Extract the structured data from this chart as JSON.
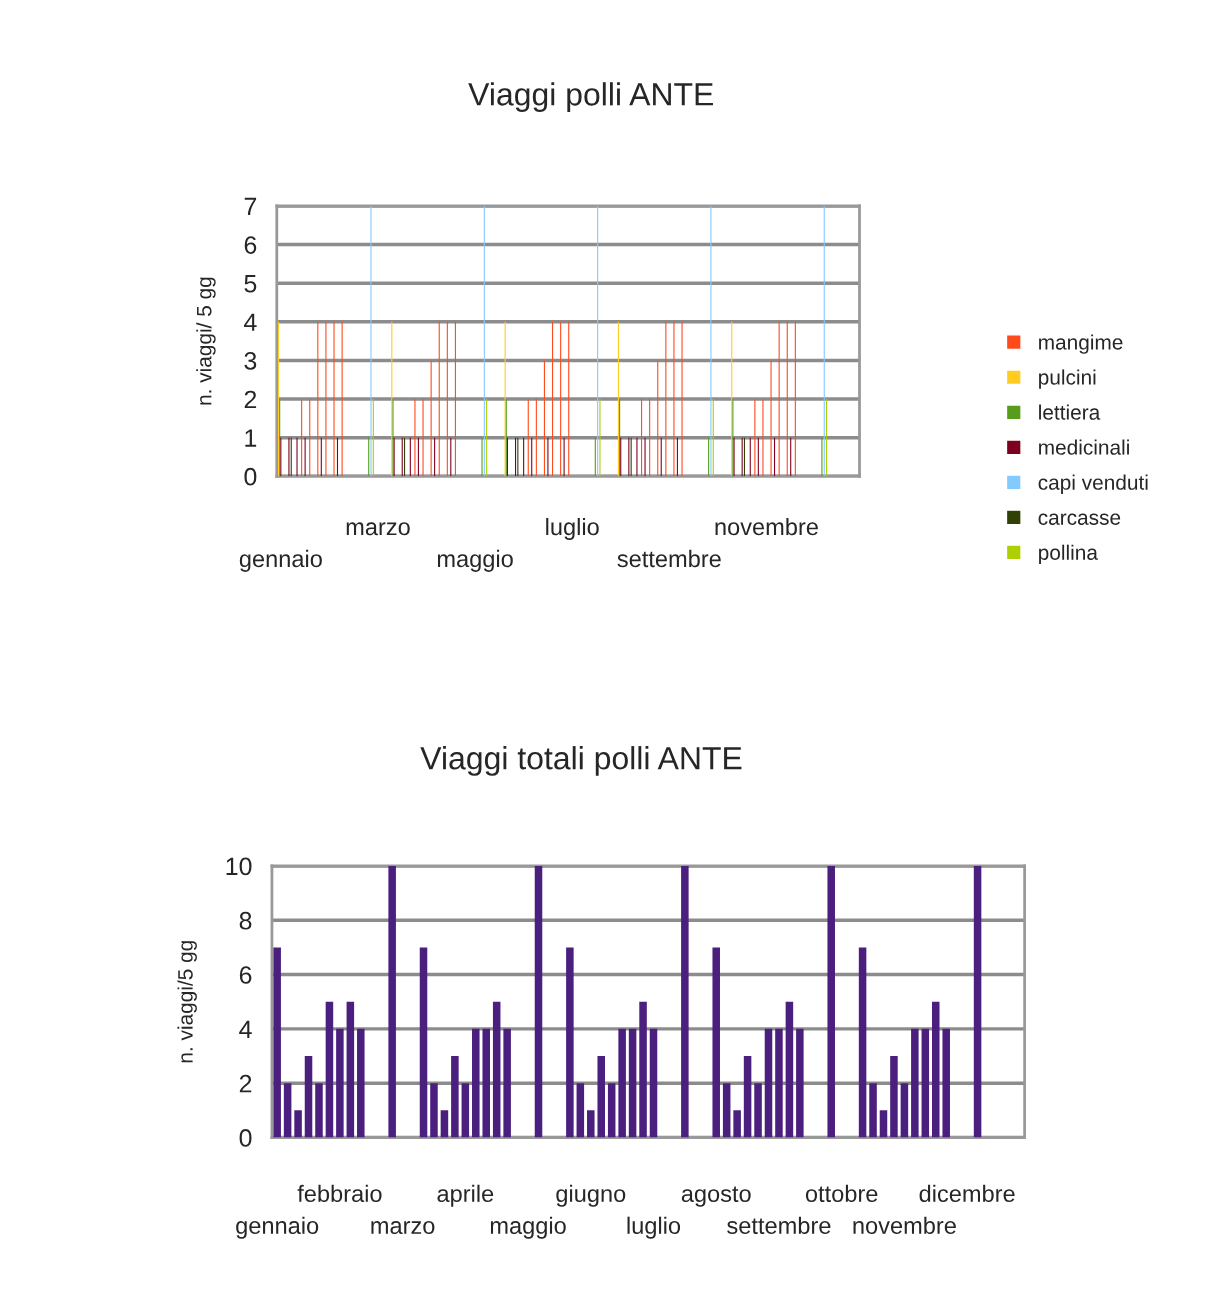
{
  "chart_data": [
    {
      "type": "bar",
      "title": "Viaggi polli ANTE",
      "ylabel": "n. viaggi/ 5 gg",
      "ylim": [
        0,
        7
      ],
      "yticks": [
        0,
        1,
        2,
        3,
        4,
        5,
        6,
        7
      ],
      "grid": "y",
      "legend": "right",
      "categories": [
        "gennaio",
        null,
        null,
        null,
        null,
        null,
        null,
        null,
        null,
        null,
        null,
        null,
        "marzo",
        null,
        null,
        null,
        null,
        null,
        null,
        null,
        null,
        null,
        null,
        null,
        "maggio",
        null,
        null,
        null,
        null,
        null,
        null,
        null,
        null,
        null,
        null,
        null,
        "luglio",
        null,
        null,
        null,
        null,
        null,
        null,
        null,
        null,
        null,
        null,
        null,
        "settembre",
        null,
        null,
        null,
        null,
        null,
        null,
        null,
        null,
        null,
        null,
        null,
        "novembre",
        null,
        null,
        null,
        null,
        null,
        null,
        null,
        null,
        null,
        null,
        null
      ],
      "series": [
        {
          "name": "mangime",
          "color": "#ff4a1c",
          "values": [
            null,
            null,
            null,
            2,
            2,
            4,
            4,
            4,
            4,
            null,
            null,
            null,
            null,
            null,
            null,
            null,
            null,
            2,
            2,
            3,
            4,
            4,
            4,
            null,
            null,
            null,
            null,
            null,
            null,
            null,
            null,
            2,
            2,
            3,
            4,
            4,
            4,
            null,
            null,
            null,
            null,
            null,
            null,
            null,
            null,
            2,
            2,
            3,
            4,
            4,
            4,
            null,
            null,
            null,
            null,
            null,
            null,
            null,
            null,
            2,
            2,
            3,
            4,
            4,
            4,
            null,
            null,
            null,
            null,
            null,
            null,
            null
          ]
        },
        {
          "name": "pulcini",
          "color": "#ffcc1f",
          "values": [
            4,
            null,
            null,
            null,
            null,
            null,
            null,
            null,
            null,
            null,
            null,
            null,
            null,
            null,
            4,
            null,
            null,
            null,
            null,
            null,
            null,
            null,
            null,
            null,
            null,
            null,
            null,
            null,
            4,
            null,
            null,
            null,
            null,
            null,
            null,
            null,
            null,
            null,
            null,
            null,
            null,
            null,
            4,
            null,
            null,
            null,
            null,
            null,
            null,
            null,
            null,
            null,
            null,
            null,
            null,
            null,
            4,
            null,
            null,
            null,
            null,
            null,
            null,
            null,
            null,
            null,
            null,
            null,
            null,
            null,
            null,
            null
          ]
        },
        {
          "name": "lettiera",
          "color": "#579d1c",
          "values": [
            2,
            null,
            null,
            null,
            null,
            null,
            null,
            null,
            null,
            null,
            null,
            1,
            null,
            null,
            2,
            null,
            null,
            null,
            null,
            null,
            null,
            null,
            null,
            null,
            null,
            1,
            null,
            null,
            2,
            null,
            null,
            null,
            null,
            null,
            null,
            null,
            null,
            null,
            null,
            1,
            null,
            null,
            2,
            null,
            null,
            null,
            null,
            null,
            null,
            null,
            null,
            null,
            null,
            1,
            null,
            null,
            2,
            null,
            null,
            null,
            null,
            null,
            null,
            null,
            null,
            null,
            null,
            1,
            null,
            null,
            null,
            null
          ]
        },
        {
          "name": "medicinali",
          "color": "#7e0021",
          "values": [
            1,
            1,
            1,
            1,
            null,
            1,
            null,
            1,
            null,
            null,
            null,
            null,
            null,
            null,
            1,
            1,
            1,
            1,
            null,
            1,
            null,
            1,
            null,
            null,
            null,
            null,
            null,
            null,
            1,
            1,
            1,
            1,
            null,
            1,
            null,
            1,
            null,
            null,
            null,
            null,
            null,
            null,
            1,
            1,
            1,
            1,
            null,
            1,
            null,
            1,
            null,
            null,
            null,
            null,
            null,
            null,
            1,
            1,
            1,
            1,
            null,
            1,
            null,
            1,
            null,
            null,
            null,
            null,
            null,
            null,
            null,
            null
          ]
        },
        {
          "name": "capi venduti",
          "color": "#83caff",
          "values": [
            null,
            null,
            null,
            null,
            null,
            null,
            null,
            null,
            null,
            null,
            null,
            7,
            null,
            null,
            null,
            null,
            null,
            null,
            null,
            null,
            null,
            null,
            null,
            null,
            null,
            7,
            null,
            null,
            null,
            null,
            null,
            null,
            null,
            null,
            null,
            null,
            null,
            null,
            null,
            7,
            null,
            null,
            null,
            null,
            null,
            null,
            null,
            null,
            null,
            null,
            null,
            null,
            null,
            7,
            null,
            null,
            null,
            null,
            null,
            null,
            null,
            null,
            null,
            null,
            null,
            null,
            null,
            7,
            null,
            null,
            null,
            null
          ]
        },
        {
          "name": "carcasse",
          "color": "#314004",
          "values": [
            null,
            1,
            null,
            null,
            null,
            null,
            null,
            null,
            null,
            null,
            null,
            null,
            null,
            null,
            null,
            1,
            null,
            null,
            null,
            null,
            null,
            null,
            null,
            null,
            null,
            null,
            null,
            null,
            null,
            1,
            null,
            null,
            null,
            null,
            null,
            null,
            null,
            null,
            null,
            null,
            null,
            null,
            null,
            1,
            null,
            null,
            null,
            null,
            null,
            null,
            null,
            null,
            null,
            null,
            null,
            null,
            null,
            1,
            null,
            null,
            null,
            null,
            null,
            null,
            null,
            null,
            null,
            null,
            null,
            null,
            null,
            null
          ]
        },
        {
          "name": "pollina",
          "color": "#aecf00",
          "values": [
            null,
            null,
            null,
            null,
            null,
            null,
            null,
            null,
            null,
            null,
            null,
            2,
            null,
            null,
            null,
            null,
            null,
            null,
            null,
            null,
            null,
            null,
            null,
            null,
            null,
            2,
            null,
            null,
            null,
            null,
            null,
            null,
            null,
            null,
            null,
            null,
            null,
            null,
            null,
            2,
            null,
            null,
            null,
            null,
            null,
            null,
            null,
            null,
            null,
            null,
            null,
            null,
            null,
            2,
            null,
            null,
            null,
            null,
            null,
            null,
            null,
            null,
            null,
            null,
            null,
            null,
            null,
            2,
            null,
            null,
            null,
            null
          ]
        }
      ]
    },
    {
      "type": "bar",
      "title": "Viaggi totali polli ANTE",
      "ylabel": "n. viaggi/5 gg",
      "ylim": [
        0,
        10
      ],
      "yticks": [
        0,
        2,
        4,
        6,
        8,
        10
      ],
      "grid": "y",
      "categories": [
        "gennaio",
        null,
        null,
        null,
        null,
        null,
        "febbraio",
        null,
        null,
        null,
        null,
        null,
        "marzo",
        null,
        null,
        null,
        null,
        null,
        "aprile",
        null,
        null,
        null,
        null,
        null,
        "maggio",
        null,
        null,
        null,
        null,
        null,
        "giugno",
        null,
        null,
        null,
        null,
        null,
        "luglio",
        null,
        null,
        null,
        null,
        null,
        "agosto",
        null,
        null,
        null,
        null,
        null,
        "settembre",
        null,
        null,
        null,
        null,
        null,
        "ottobre",
        null,
        null,
        null,
        null,
        null,
        "novembre",
        null,
        null,
        null,
        null,
        null,
        "dicembre",
        null,
        null,
        null,
        null,
        null
      ],
      "series": [
        {
          "color": "#4b1f7e",
          "values": [
            7,
            2,
            1,
            3,
            2,
            5,
            4,
            5,
            4,
            null,
            null,
            10,
            null,
            null,
            7,
            2,
            1,
            3,
            2,
            4,
            4,
            5,
            4,
            null,
            null,
            10,
            null,
            null,
            7,
            2,
            1,
            3,
            2,
            4,
            4,
            5,
            4,
            null,
            null,
            10,
            null,
            null,
            7,
            2,
            1,
            3,
            2,
            4,
            4,
            5,
            4,
            null,
            null,
            10,
            null,
            null,
            7,
            2,
            1,
            3,
            2,
            4,
            4,
            5,
            4,
            null,
            null,
            10,
            null,
            null,
            null,
            null
          ]
        }
      ]
    }
  ]
}
